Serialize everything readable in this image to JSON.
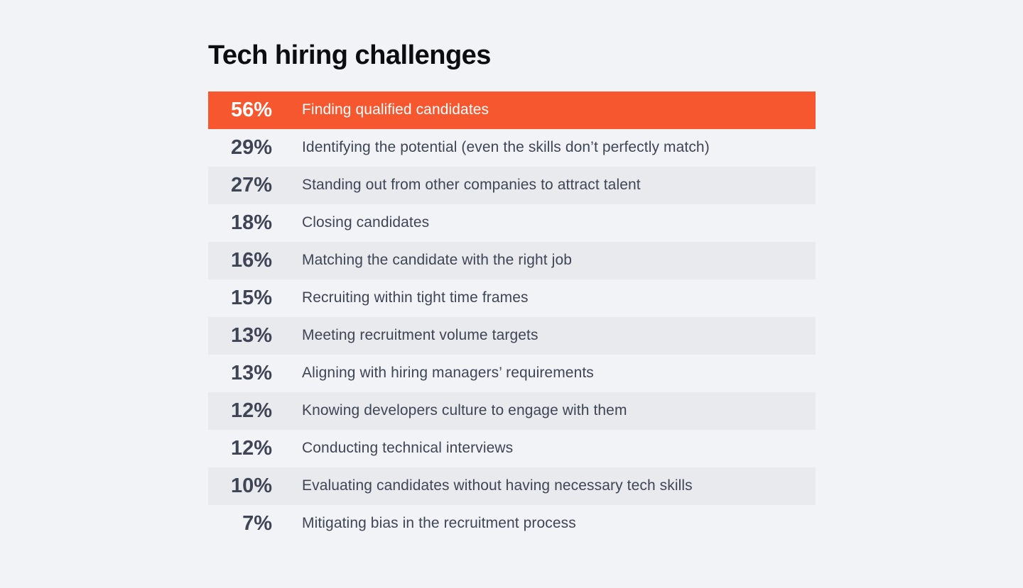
{
  "chart_data": {
    "type": "table",
    "title": "Tech hiring challenges",
    "categories": [
      "Finding qualified candidates",
      "Identifying the potential (even the skills don’t perfectly match)",
      "Standing out from other companies to attract talent",
      "Closing candidates",
      "Matching the candidate with the right job",
      "Recruiting within tight time frames",
      "Meeting recruitment volume targets",
      "Aligning with hiring managers’ requirements",
      "Knowing developers culture to engage with them",
      "Conducting technical interviews",
      "Evaluating candidates without having necessary tech skills",
      "Mitigating bias in the recruitment process"
    ],
    "values": [
      56,
      29,
      27,
      18,
      16,
      15,
      13,
      13,
      12,
      12,
      10,
      7
    ],
    "highlight_index": 0,
    "legend": "none",
    "colors": {
      "accent": "#F7572F",
      "row_shade": "#E8EAEE",
      "background": "#F2F3F7",
      "text": "#3F4554",
      "highlight_text": "#FFFFFF"
    },
    "rows": [
      {
        "percent": "56%",
        "label": "Finding qualified candidates"
      },
      {
        "percent": "29%",
        "label": "Identifying the potential (even the skills don’t perfectly match)"
      },
      {
        "percent": "27%",
        "label": "Standing out from other companies to attract talent"
      },
      {
        "percent": "18%",
        "label": "Closing candidates"
      },
      {
        "percent": "16%",
        "label": "Matching the candidate with the right job"
      },
      {
        "percent": "15%",
        "label": "Recruiting within tight time frames"
      },
      {
        "percent": "13%",
        "label": "Meeting recruitment volume targets"
      },
      {
        "percent": "13%",
        "label": "Aligning with hiring managers’ requirements"
      },
      {
        "percent": "12%",
        "label": "Knowing developers culture to engage with them"
      },
      {
        "percent": "12%",
        "label": "Conducting technical interviews"
      },
      {
        "percent": "10%",
        "label": "Evaluating candidates without having necessary tech skills"
      },
      {
        "percent": "7%",
        "label": "Mitigating bias in the recruitment process"
      }
    ]
  }
}
